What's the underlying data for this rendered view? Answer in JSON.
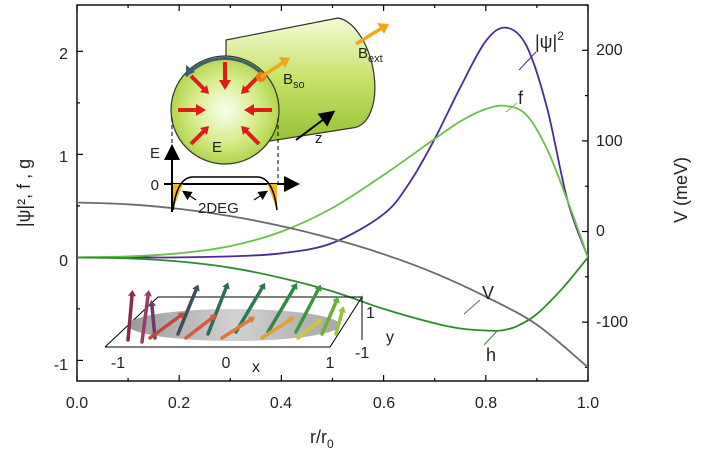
{
  "chart_data": {
    "type": "line",
    "xlabel_main": "r/r",
    "xlabel_sub": "0",
    "ylabel_left": "|ψ|², f , g",
    "ylabel_right": "V (meV)",
    "xlim": [
      0.0,
      1.0
    ],
    "ylim_left": [
      -1.2,
      2.45
    ],
    "ylim_right": [
      -165,
      250
    ],
    "xticks": [
      "0.0",
      "0.2",
      "0.4",
      "0.6",
      "0.8",
      "1.0"
    ],
    "yticks_left": [
      "-1",
      "0",
      "1",
      "2"
    ],
    "yticks_right": [
      "-100",
      "0",
      "100",
      "200"
    ],
    "series": [
      {
        "name": "|ψ|²",
        "color": "#4b2a9c",
        "x": [
          0.0,
          0.1,
          0.2,
          0.3,
          0.4,
          0.5,
          0.6,
          0.65,
          0.7,
          0.75,
          0.8,
          0.84,
          0.88,
          0.92,
          0.96,
          1.0
        ],
        "y": [
          0.0,
          0.0,
          0.0,
          0.01,
          0.04,
          0.14,
          0.42,
          0.72,
          1.15,
          1.65,
          2.1,
          2.23,
          2.05,
          1.45,
          0.55,
          0.0
        ]
      },
      {
        "name": "f",
        "color": "#6dbf4b",
        "x": [
          0.0,
          0.1,
          0.2,
          0.3,
          0.4,
          0.5,
          0.6,
          0.7,
          0.75,
          0.8,
          0.84,
          0.88,
          0.92,
          0.96,
          1.0
        ],
        "y": [
          0.0,
          0.01,
          0.04,
          0.11,
          0.25,
          0.48,
          0.8,
          1.15,
          1.32,
          1.44,
          1.47,
          1.38,
          1.05,
          0.55,
          0.0
        ]
      },
      {
        "name": "h",
        "color": "#2f8a2f",
        "x": [
          0.0,
          0.1,
          0.2,
          0.3,
          0.4,
          0.5,
          0.6,
          0.7,
          0.75,
          0.8,
          0.83,
          0.86,
          0.9,
          0.95,
          1.0
        ],
        "y": [
          0.0,
          -0.01,
          -0.04,
          -0.1,
          -0.2,
          -0.33,
          -0.5,
          -0.64,
          -0.69,
          -0.71,
          -0.71,
          -0.67,
          -0.55,
          -0.3,
          0.0
        ]
      },
      {
        "name": "V",
        "color": "#6b6b6b",
        "axis": "right",
        "x": [
          0.0,
          0.1,
          0.2,
          0.3,
          0.4,
          0.5,
          0.6,
          0.7,
          0.8,
          0.9,
          1.0
        ],
        "y": [
          32,
          30,
          25,
          17,
          6,
          -8,
          -25,
          -46,
          -72,
          -103,
          -150
        ]
      }
    ],
    "annotations": {
      "psi": "|ψ|",
      "psi_sup": "2",
      "f": "f",
      "h": "h",
      "V": "V"
    },
    "inset_top": {
      "B_ext": "B",
      "B_ext_sub": "ext",
      "B_so": "B",
      "B_so_sub": "so",
      "E_field": "E",
      "z": "z",
      "E_axis": "E",
      "zero": "0",
      "twodeg": "2DEG"
    },
    "inset_bottom": {
      "x_label": "x",
      "y_label": "y",
      "x_ticks": [
        "-1",
        "0",
        "1"
      ],
      "y_ticks": [
        "1",
        "-1"
      ]
    }
  }
}
